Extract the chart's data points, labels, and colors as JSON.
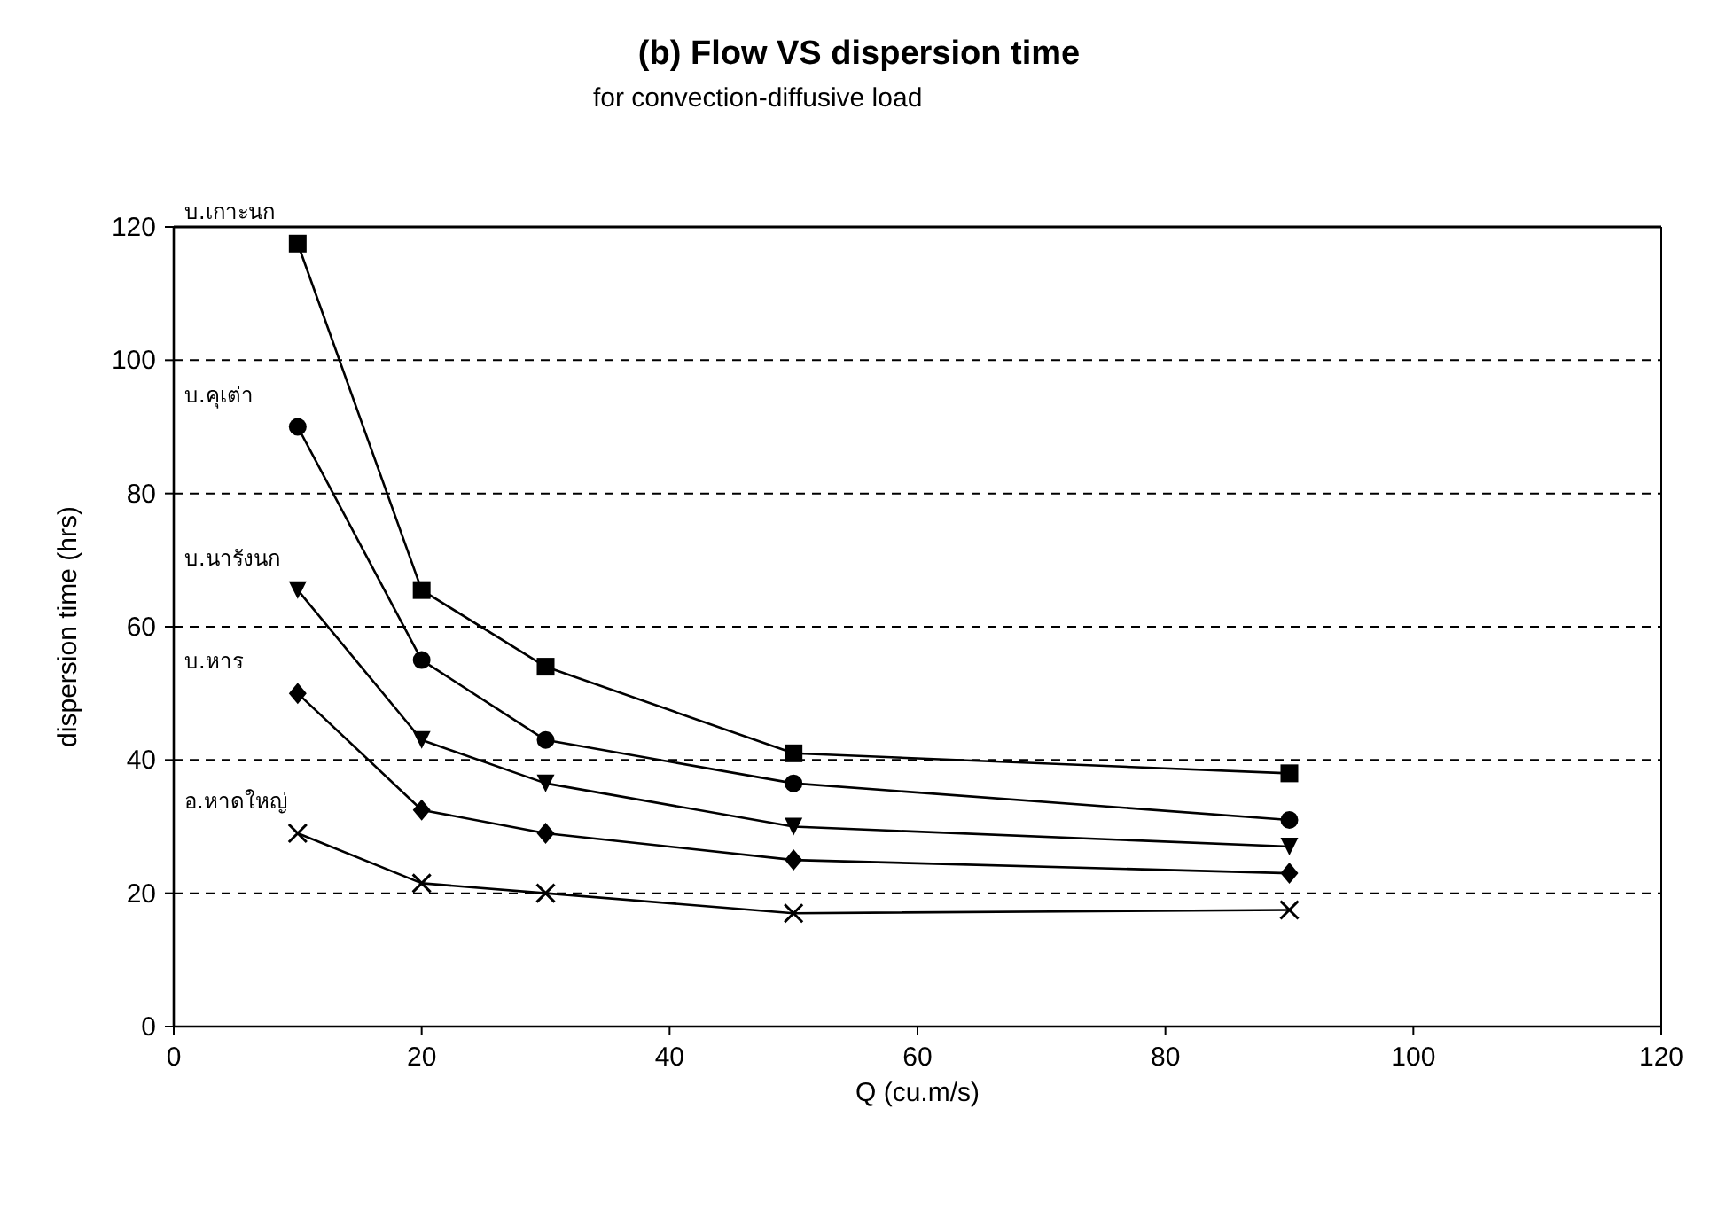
{
  "chart_data": {
    "type": "line",
    "title": "(b) Flow VS dispersion time",
    "subtitle": "for convection-diffusive load",
    "xlabel": "Q (cu.m/s)",
    "ylabel": "dispersion time (hrs)",
    "x": [
      10,
      20,
      30,
      50,
      90
    ],
    "series": [
      {
        "name": "บ.เกาะนก",
        "color": "#000000",
        "marker": "square",
        "values": [
          117.5,
          65.5,
          54,
          41,
          38
        ]
      },
      {
        "name": "บ.คุเต่า",
        "color": "#000000",
        "marker": "circle",
        "values": [
          90,
          55,
          43,
          36.5,
          31
        ]
      },
      {
        "name": "บ.นารังนก",
        "color": "#000000",
        "marker": "triangle",
        "values": [
          65.5,
          43,
          36.5,
          30,
          27
        ]
      },
      {
        "name": "บ.หาร",
        "color": "#000000",
        "marker": "diamond",
        "values": [
          50,
          32.5,
          29,
          25,
          23
        ]
      },
      {
        "name": "อ.หาดใหญ่",
        "color": "#000000",
        "marker": "cross",
        "values": [
          29,
          21.5,
          20,
          17,
          17.5
        ]
      }
    ],
    "xlim": [
      0,
      120
    ],
    "xticks": [
      0,
      20,
      40,
      60,
      80,
      100,
      120
    ],
    "ylim": [
      0,
      120
    ],
    "yticks": [
      0,
      20,
      40,
      60,
      80,
      100,
      120
    ],
    "grid": "y",
    "legend": false,
    "line_style": "solid"
  }
}
